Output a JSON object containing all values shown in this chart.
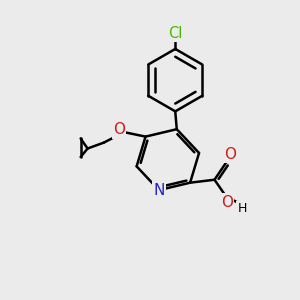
{
  "background_color": "#ebebeb",
  "bond_color": "#000000",
  "bond_width": 1.8,
  "atom_colors": {
    "C": "#000000",
    "H": "#000000",
    "N": "#2020cc",
    "O": "#cc2020",
    "Cl": "#44bb00"
  },
  "font_size": 9.5
}
